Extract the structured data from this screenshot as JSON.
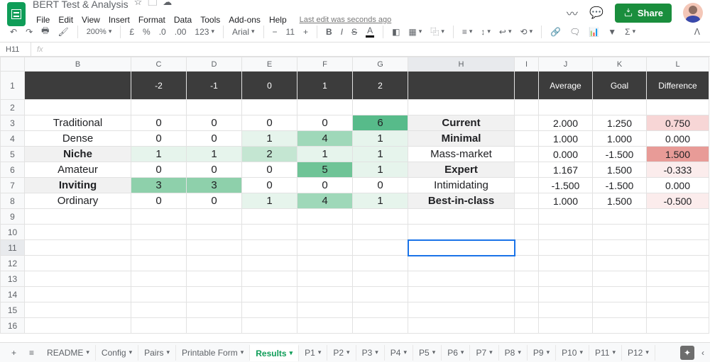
{
  "doc": {
    "title": "BERT Test & Analysis",
    "last_edit": "Last edit was seconds ago"
  },
  "share_label": "Share",
  "menu": [
    "File",
    "Edit",
    "View",
    "Insert",
    "Format",
    "Data",
    "Tools",
    "Add-ons",
    "Help"
  ],
  "toolbar": {
    "zoom": "200%",
    "currency": "£",
    "percent": "%",
    "dec_dec": ".0",
    "dec_inc": ".00",
    "more_fmt": "123",
    "font": "Arial",
    "size": "11"
  },
  "name_box": "H11",
  "columns": {
    "widths": {
      "A": 34,
      "B": 150,
      "C": 78,
      "D": 78,
      "E": 78,
      "F": 78,
      "G": 78,
      "H": 150,
      "I": 34,
      "J": 76,
      "K": 76,
      "L": 88
    },
    "letters": [
      "B",
      "C",
      "D",
      "E",
      "F",
      "G",
      "H",
      "I",
      "J",
      "K",
      "L"
    ]
  },
  "header_row": {
    "B": "",
    "C": "-2",
    "D": "-1",
    "E": "0",
    "F": "1",
    "G": "2",
    "H": "",
    "I": "",
    "J": "Average",
    "K": "Goal",
    "L": "Difference"
  },
  "rows": [
    {
      "left": "Traditional",
      "left_bold": false,
      "vals": [
        0,
        0,
        0,
        0,
        6
      ],
      "val_bg": [
        "",
        "",
        "",
        "",
        "#57bb8a"
      ],
      "right": "Current",
      "right_bold": true,
      "right_bg": "#f1f1f1",
      "avg": "2.000",
      "goal": "1.250",
      "diff": "0.750",
      "diff_bg": "#f7d6d6"
    },
    {
      "left": "Dense",
      "left_bold": false,
      "vals": [
        0,
        0,
        1,
        4,
        1
      ],
      "val_bg": [
        "",
        "",
        "#e6f4ec",
        "#9fd8b9",
        "#e6f4ec"
      ],
      "right": "Minimal",
      "right_bold": true,
      "right_bg": "#f1f1f1",
      "avg": "1.000",
      "goal": "1.000",
      "diff": "0.000",
      "diff_bg": ""
    },
    {
      "left": "Niche",
      "left_bold": true,
      "left_bg": "#f1f1f1",
      "vals": [
        1,
        1,
        2,
        1,
        1
      ],
      "val_bg": [
        "#e6f4ec",
        "#e6f4ec",
        "#c4e6d2",
        "#e6f4ec",
        "#e6f4ec"
      ],
      "right": "Mass-market",
      "right_bold": false,
      "right_bg": "",
      "avg": "0.000",
      "goal": "-1.500",
      "diff": "1.500",
      "diff_bg": "#e89b97"
    },
    {
      "left": "Amateur",
      "left_bold": false,
      "vals": [
        0,
        0,
        0,
        5,
        1
      ],
      "val_bg": [
        "",
        "",
        "",
        "#6fc497",
        "#e6f4ec"
      ],
      "right": "Expert",
      "right_bold": true,
      "right_bg": "#f1f1f1",
      "avg": "1.167",
      "goal": "1.500",
      "diff": "-0.333",
      "diff_bg": "#fbecec"
    },
    {
      "left": "Inviting",
      "left_bold": true,
      "left_bg": "#f1f1f1",
      "vals": [
        3,
        3,
        0,
        0,
        0
      ],
      "val_bg": [
        "#8ed0ab",
        "#8ed0ab",
        "",
        "",
        ""
      ],
      "right": "Intimidating",
      "right_bold": false,
      "right_bg": "",
      "avg": "-1.500",
      "goal": "-1.500",
      "diff": "0.000",
      "diff_bg": ""
    },
    {
      "left": "Ordinary",
      "left_bold": false,
      "vals": [
        0,
        0,
        1,
        4,
        1
      ],
      "val_bg": [
        "",
        "",
        "#e6f4ec",
        "#9fd8b9",
        "#e6f4ec"
      ],
      "right": "Best-in-class",
      "right_bold": true,
      "right_bg": "#f1f1f1",
      "avg": "1.000",
      "goal": "1.500",
      "diff": "-0.500",
      "diff_bg": "#fbecec"
    }
  ],
  "empty_rows": [
    9,
    10,
    11,
    12,
    13,
    14,
    15,
    16
  ],
  "selected": {
    "row": 11,
    "col": "H"
  },
  "sheets": [
    "README",
    "Config",
    "Pairs",
    "Printable Form",
    "Results",
    "P1",
    "P2",
    "P3",
    "P4",
    "P5",
    "P6",
    "P7",
    "P8",
    "P9",
    "P10",
    "P11",
    "P12"
  ],
  "active_sheet": "Results"
}
